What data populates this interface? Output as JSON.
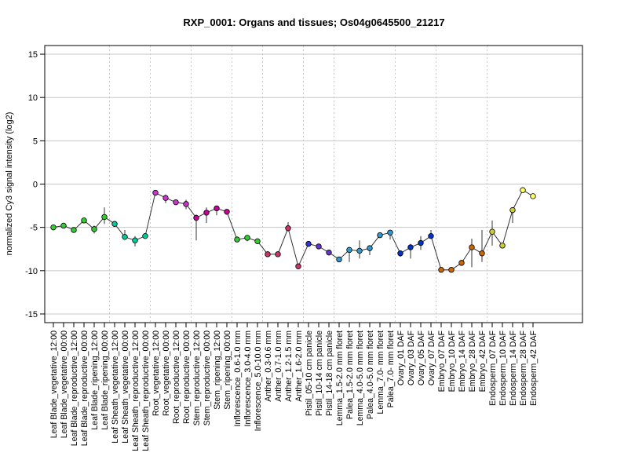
{
  "chart_data": {
    "type": "line",
    "title": "RXP_0001: Organs and tissues; Os04g0645500_21217",
    "xlabel": "",
    "ylabel": "normalized Cy3 signal intensity (log2)",
    "ylim": [
      -16,
      16
    ],
    "yticks": [
      -15,
      -10,
      -5,
      0,
      5,
      10,
      15
    ],
    "grid": true,
    "legend": "none",
    "line_color": "#333333",
    "separator_color": "#c8c8c8",
    "hgrid_color": "#c8c8c8",
    "categories": [
      "Leaf Blade_vegetative_12:00",
      "Leaf Blade_vegetative_00:00",
      "Leaf Blade_reproductive_12:00",
      "Leaf Blade_reproductive_00:00",
      "Leaf Blade_ripening_12:00",
      "Leaf Blade_ripening_00:00",
      "Leaf Sheath_vegetative_12:00",
      "Leaf Sheath_vegetative_00:00",
      "Leaf Sheath_reproductive_12:00",
      "Leaf Sheath_reproductive_00:00",
      "Root_vegetative_12:00",
      "Root_vegetative_00:00",
      "Root_reproductive_12:00",
      "Root_reproductive_00:00",
      "Stem_reproductive_12:00",
      "Stem_reproductive_00:00",
      "Stem_ripening_12:00",
      "Stem_ripening_00:00",
      "Inflorescence_0.6-1.0 mm",
      "Inflorescence_3.0-4.0 mm",
      "Inflorescence_5.0-10.0 mm",
      "Anther_0.3-0.6 mm",
      "Anther_0.7-1.0 mm",
      "Anther_1.2-1.5 mm",
      "Anther_1.6-2.0 mm",
      "Pistil_05-10 cm panicle",
      "Pistil_10-14 cm panicle",
      "Pistil_14-18 cm panicle",
      "Lemma_1.5-2.0 mm floret",
      "Palea_1.5-2.0 mm floret",
      "Lemma_4.0-5.0 mm floret",
      "Palea_4.0-5.0 mm floret",
      "Lemma_7.0- mm floret",
      "Palea_7.0- mm floret",
      "Ovary_01 DAF",
      "Ovary_03 DAF",
      "Ovary_05 DAF",
      "Ovary_07 DAF",
      "Embryo_07 DAF",
      "Embryo_10 DAF",
      "Embryo_14 DAF",
      "Embryo_28 DAF",
      "Embryo_42 DAF",
      "Endosperm_07 DAF",
      "Endosperm_10 DAF",
      "Endosperm_14 DAF",
      "Endosperm_28 DAF",
      "Endosperm_42 DAF"
    ],
    "values": [
      -5.0,
      -4.8,
      -5.3,
      -4.2,
      -5.2,
      -3.8,
      -4.6,
      -6.1,
      -6.5,
      -6.0,
      -1.0,
      -1.6,
      -2.1,
      -2.3,
      -3.9,
      -3.3,
      -2.8,
      -3.2,
      -6.4,
      -6.2,
      -6.6,
      -8.1,
      -8.1,
      -5.1,
      -9.5,
      -6.9,
      -7.2,
      -7.9,
      -8.7,
      -7.6,
      -7.7,
      -7.4,
      -5.9,
      -5.6,
      -8.0,
      -7.3,
      -6.8,
      -6.0,
      -9.9,
      -9.9,
      -9.1,
      -7.3,
      -8.0,
      -5.5,
      -7.1,
      -3.0,
      -0.7,
      -1.4
    ],
    "error_low": [
      -5.1,
      -5.1,
      -5.4,
      -4.4,
      -5.7,
      -4.6,
      -4.9,
      -6.3,
      -7.2,
      -6.3,
      -1.0,
      -2.2,
      -2.3,
      -2.9,
      -6.5,
      -4.5,
      -3.6,
      -3.3,
      -6.5,
      -6.6,
      -6.7,
      -8.1,
      -8.1,
      -5.3,
      -9.6,
      -7.0,
      -7.2,
      -8.0,
      -8.9,
      -9.0,
      -8.6,
      -8.2,
      -6.0,
      -6.4,
      -8.4,
      -8.6,
      -7.6,
      -6.3,
      -9.9,
      -10.0,
      -9.2,
      -9.6,
      -9.0,
      -7.1,
      -7.2,
      -4.5,
      -0.7,
      -1.4
    ],
    "error_high": [
      -4.9,
      -4.5,
      -5.2,
      -4.0,
      -4.8,
      -2.7,
      -4.3,
      -5.3,
      -6.0,
      -5.7,
      -0.8,
      -1.2,
      -1.9,
      -1.8,
      -3.5,
      -2.7,
      -2.5,
      -3.1,
      -6.3,
      -5.9,
      -6.4,
      -8.0,
      -8.0,
      -4.4,
      -9.4,
      -6.8,
      -7.1,
      -7.7,
      -8.6,
      -7.4,
      -6.5,
      -7.2,
      -5.7,
      -5.4,
      -7.8,
      -6.9,
      -6.0,
      -5.3,
      -9.8,
      -9.8,
      -9.0,
      -6.3,
      -5.3,
      -4.2,
      -6.9,
      -2.8,
      -0.6,
      -1.3
    ],
    "colors": [
      "#33cc33",
      "#33cc33",
      "#33cc33",
      "#33cc33",
      "#33cc33",
      "#33cc33",
      "#00cc99",
      "#00cc99",
      "#00cc99",
      "#00cc99",
      "#cc33cc",
      "#cc33cc",
      "#cc33cc",
      "#cc33cc",
      "#cc0099",
      "#cc0099",
      "#cc0099",
      "#cc0099",
      "#33cc33",
      "#33cc33",
      "#33cc33",
      "#cc3366",
      "#cc3366",
      "#cc3366",
      "#cc3366",
      "#3333cc",
      "#6633cc",
      "#6633cc",
      "#3399cc",
      "#3399cc",
      "#3399cc",
      "#3399cc",
      "#3399cc",
      "#3399cc",
      "#0033cc",
      "#0033cc",
      "#0033cc",
      "#0033cc",
      "#cc6600",
      "#cc6600",
      "#cc6600",
      "#cc6600",
      "#cc6600",
      "#cccc33",
      "#cccc33",
      "#cccc33",
      "#ffff66",
      "#ffff66"
    ],
    "separators_after": [
      5,
      9,
      13,
      17,
      20,
      24,
      27,
      33,
      37,
      42
    ]
  }
}
